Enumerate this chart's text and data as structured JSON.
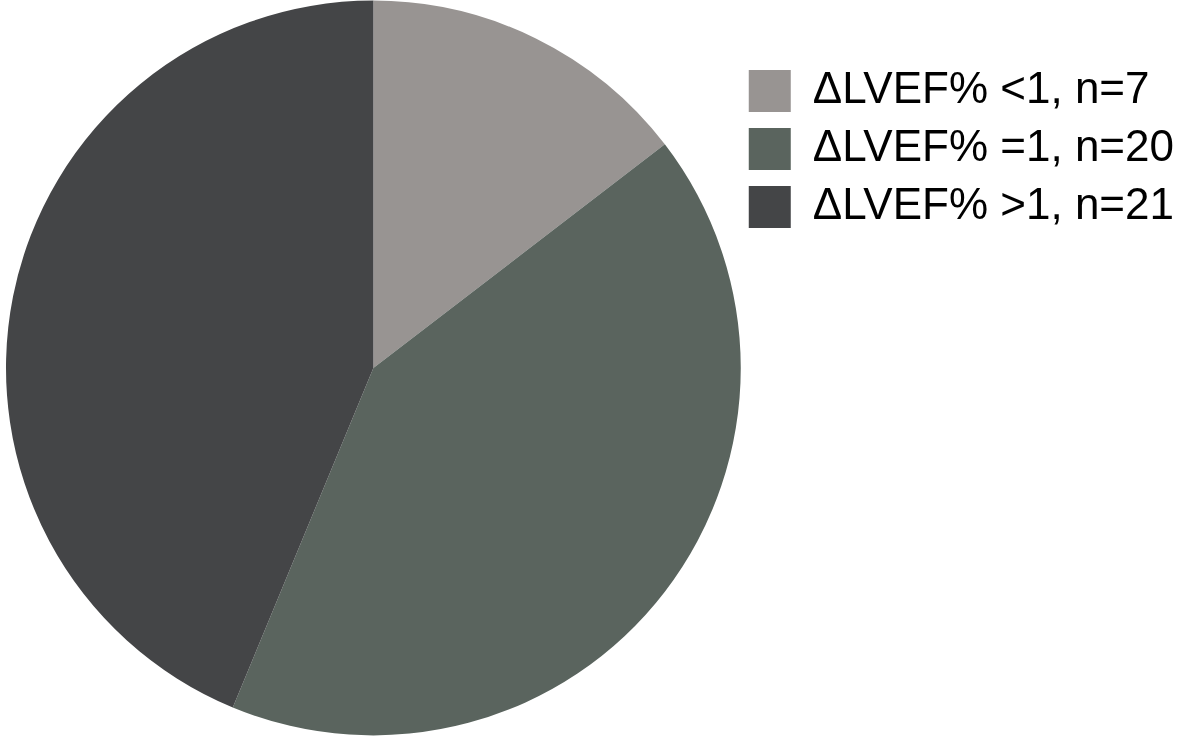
{
  "chart_data": {
    "type": "pie",
    "categories": [
      "ΔLVEF% <1, n=7",
      "ΔLVEF% =1, n=20",
      "ΔLVEF% >1, n=21"
    ],
    "values": [
      7,
      20,
      21
    ],
    "colors": [
      "#989492",
      "#5a645e",
      "#444547"
    ],
    "legend": "top right"
  }
}
